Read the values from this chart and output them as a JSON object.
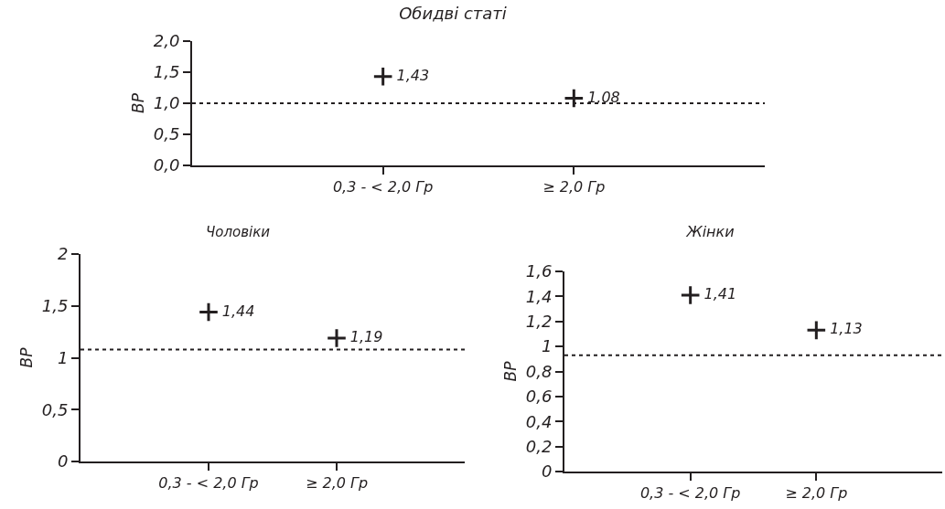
{
  "chart_data": [
    {
      "type": "scatter",
      "title": "Обидві статі",
      "ylabel": "ВР",
      "categories": [
        "0,3 - < 2,0 Гр",
        "≥ 2,0 Гр"
      ],
      "values": [
        1.43,
        1.08
      ],
      "value_labels": [
        "1,43",
        "1,08"
      ],
      "color": "#231f20",
      "marker": "cross",
      "grid": false,
      "ylim": [
        0,
        2
      ],
      "yticks": [
        {
          "value": 0,
          "label": "0,0"
        },
        {
          "value": 0.5,
          "label": "0,5"
        },
        {
          "value": 1,
          "label": "1,0"
        },
        {
          "value": 1.5,
          "label": "1,5"
        },
        {
          "value": 2,
          "label": "2,0"
        }
      ],
      "ref_lines": [
        {
          "axis": "y",
          "value": 1.0,
          "line_style": "dashed",
          "color": "#231f20"
        }
      ]
    },
    {
      "type": "scatter",
      "title": "Чоловіки",
      "ylabel": "ВР",
      "categories": [
        "0,3 - < 2,0 Гр",
        "≥ 2,0 Гр"
      ],
      "values": [
        1.44,
        1.19
      ],
      "value_labels": [
        "1,44",
        "1,19"
      ],
      "color": "#231f20",
      "marker": "cross",
      "grid": false,
      "ylim": [
        0,
        2
      ],
      "yticks": [
        0,
        {
          "value": 0.5,
          "label": "0,5"
        },
        1,
        {
          "value": 1.5,
          "label": "1,5"
        },
        2
      ],
      "ref_lines": [
        {
          "axis": "y",
          "value": 1.08,
          "line_style": "dashed",
          "color": "#231f20"
        }
      ]
    },
    {
      "type": "scatter",
      "title": "Жінки",
      "ylabel": "ВР",
      "categories": [
        "0,3 - < 2,0 Гр",
        "≥ 2,0 Гр"
      ],
      "values": [
        1.41,
        1.13
      ],
      "value_labels": [
        "1,41",
        "1,13"
      ],
      "color": "#231f20",
      "marker": "cross",
      "grid": false,
      "ylim": [
        0,
        1.6
      ],
      "yticks": [
        0,
        {
          "value": 0.2,
          "label": "0,2"
        },
        {
          "value": 0.4,
          "label": "0,4"
        },
        {
          "value": 0.6,
          "label": "0,6"
        },
        {
          "value": 0.8,
          "label": "0,8"
        },
        1,
        {
          "value": 1.2,
          "label": "1,2"
        },
        {
          "value": 1.4,
          "label": "1,4"
        },
        {
          "value": 1.6,
          "label": "1,6"
        }
      ],
      "ref_lines": [
        {
          "axis": "y",
          "value": 0.93,
          "line_style": "dashed",
          "color": "#231f20"
        }
      ]
    }
  ]
}
